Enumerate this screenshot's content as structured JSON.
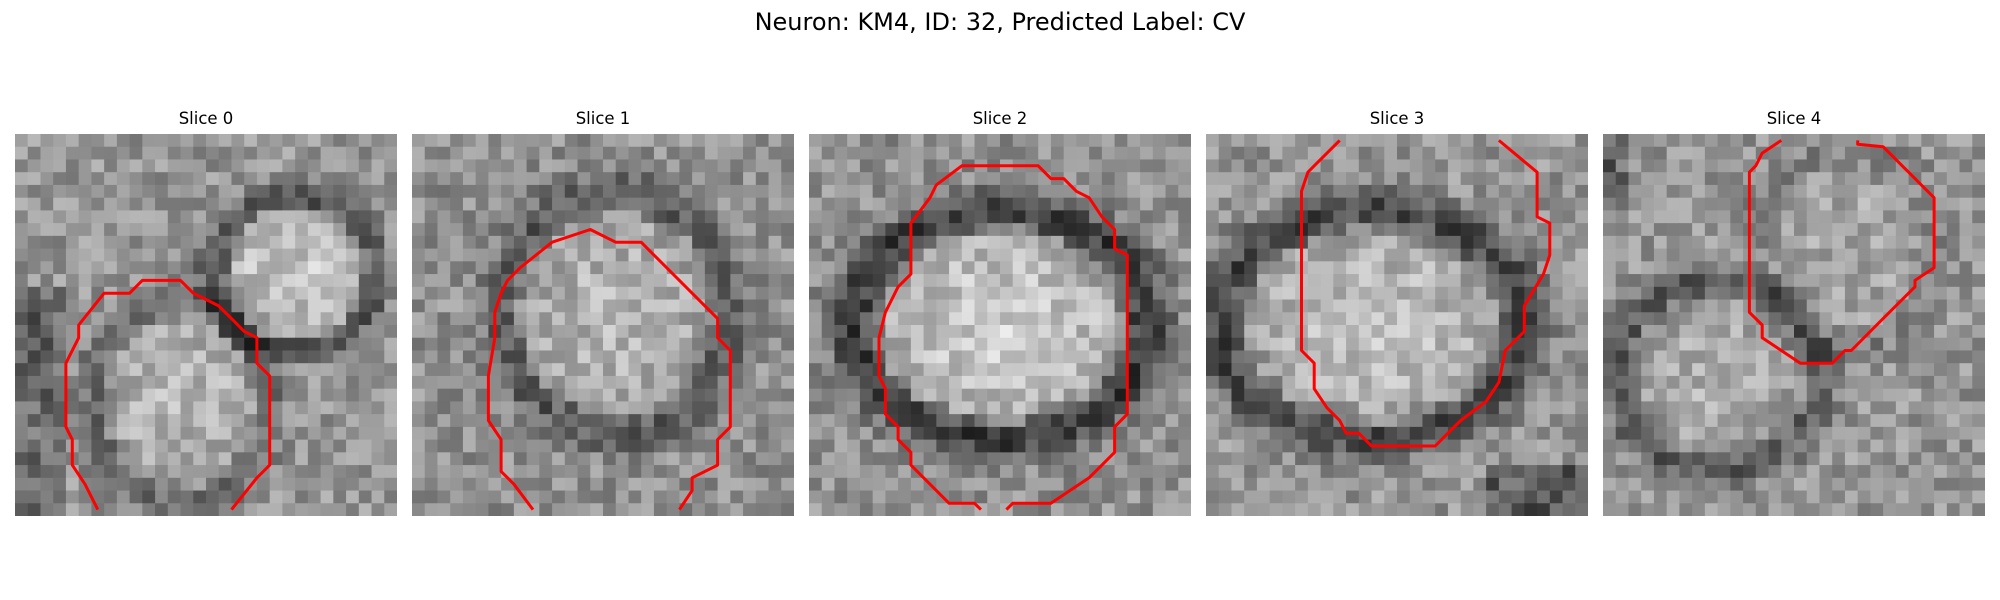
{
  "figure": {
    "title": "Neuron: KM4, ID: 32, Predicted Label: CV"
  },
  "panels": [
    {
      "title": "Slice 0"
    },
    {
      "title": "Slice 1"
    },
    {
      "title": "Slice 2"
    },
    {
      "title": "Slice 3"
    },
    {
      "title": "Slice 4"
    }
  ],
  "colors": {
    "contour": "#ff0000"
  }
}
